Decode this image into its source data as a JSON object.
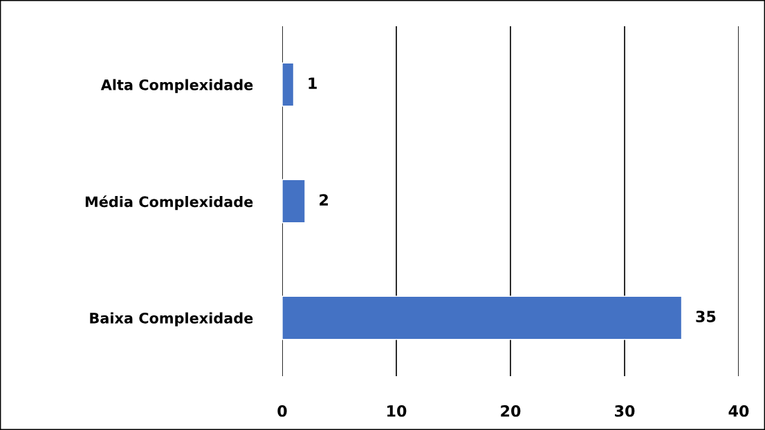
{
  "chart_data": {
    "type": "bar",
    "orientation": "horizontal",
    "categories": [
      "Alta Complexidade",
      "Média Complexidade",
      "Baixa Complexidade"
    ],
    "values": [
      1,
      2,
      35
    ],
    "color": "#4472c4",
    "xlim": [
      0,
      40
    ],
    "xticks": [
      0,
      10,
      20,
      30,
      40
    ],
    "grid": "x",
    "data_labels": true
  }
}
